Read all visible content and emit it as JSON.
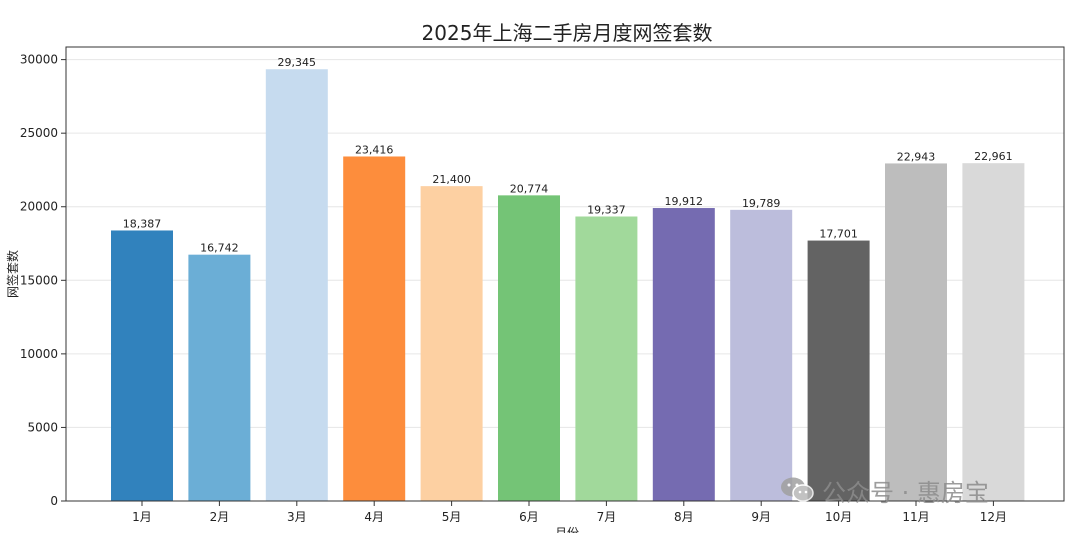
{
  "chart_data": {
    "type": "bar",
    "title": "2025年上海二手房月度网签套数",
    "xlabel": "月份",
    "ylabel": "网签套数",
    "categories": [
      "1月",
      "2月",
      "3月",
      "4月",
      "5月",
      "6月",
      "7月",
      "8月",
      "9月",
      "10月",
      "11月",
      "12月"
    ],
    "values": [
      18387,
      16742,
      29345,
      23416,
      21400,
      20774,
      19337,
      19912,
      19789,
      17701,
      22943,
      22961
    ],
    "value_labels": [
      "18,387",
      "16,742",
      "29,345",
      "23,416",
      "21,400",
      "20,774",
      "19,337",
      "19,912",
      "19,789",
      "17,701",
      "22,943",
      "22,961"
    ],
    "colors": [
      "#3182bd",
      "#6baed6",
      "#c6dbef",
      "#fd8d3c",
      "#fdd0a2",
      "#74c476",
      "#a1d99b",
      "#756bb1",
      "#bcbddc",
      "#636363",
      "#bdbdbd",
      "#d9d9d9"
    ],
    "ylim": [
      0,
      30000
    ],
    "yticks": [
      0,
      5000,
      10000,
      15000,
      20000,
      25000,
      30000
    ],
    "grid": true,
    "legend": "none"
  },
  "watermark": {
    "text": "公众号 · 惠房宝",
    "icon": "wechat-icon"
  }
}
